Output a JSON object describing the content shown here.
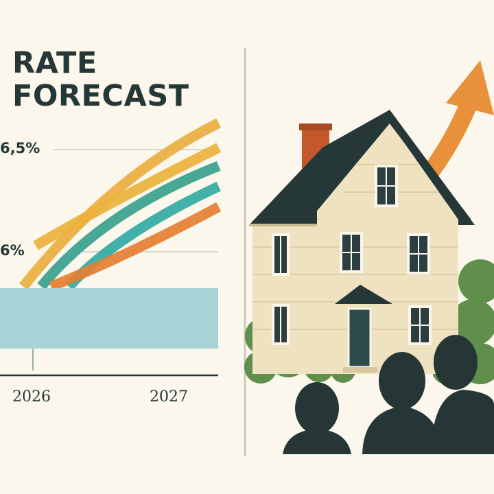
{
  "title": {
    "line1": "RATE",
    "line2": "FORECAST"
  },
  "colors": {
    "background": "#fbf7ec",
    "ink": "#253737",
    "band": "#a8d3d6",
    "arrow": "#e8913a",
    "roof": "#263737",
    "wall": "#efe2c0",
    "bush": "#5f8f4a",
    "chimney": "#c4582b"
  },
  "chart_data": {
    "type": "line",
    "title": "RATE FORECAST",
    "xlabel": "",
    "ylabel": "",
    "x_tick_labels": [
      "2026",
      "2027"
    ],
    "x_ticks": [
      2026,
      2027
    ],
    "y_tick_labels": [
      "6,5%",
      "6%"
    ],
    "y_ticks": [
      6.5,
      6.0
    ],
    "grid": true,
    "series": [
      {
        "name": "",
        "color": "#eaae3e",
        "points": [
          [
            2025.93,
            5.83
          ],
          [
            2026.6,
            6.3
          ],
          [
            2027.34,
            6.63
          ]
        ]
      },
      {
        "name": "",
        "color": "#ebb23c",
        "points": [
          [
            2026.02,
            6.03
          ],
          [
            2026.6,
            6.25
          ],
          [
            2027.34,
            6.51
          ]
        ]
      },
      {
        "name": "",
        "color": "#3a9f8e",
        "points": [
          [
            2026.06,
            5.83
          ],
          [
            2026.6,
            6.16
          ],
          [
            2027.34,
            6.42
          ]
        ]
      },
      {
        "name": "",
        "color": "#33aaa4",
        "points": [
          [
            2026.26,
            5.83
          ],
          [
            2026.7,
            6.08
          ],
          [
            2027.34,
            6.32
          ]
        ]
      },
      {
        "name": "",
        "color": "#e57f33",
        "points": [
          [
            2026.13,
            5.83
          ],
          [
            2026.7,
            6.0
          ],
          [
            2027.34,
            6.22
          ]
        ]
      }
    ]
  }
}
